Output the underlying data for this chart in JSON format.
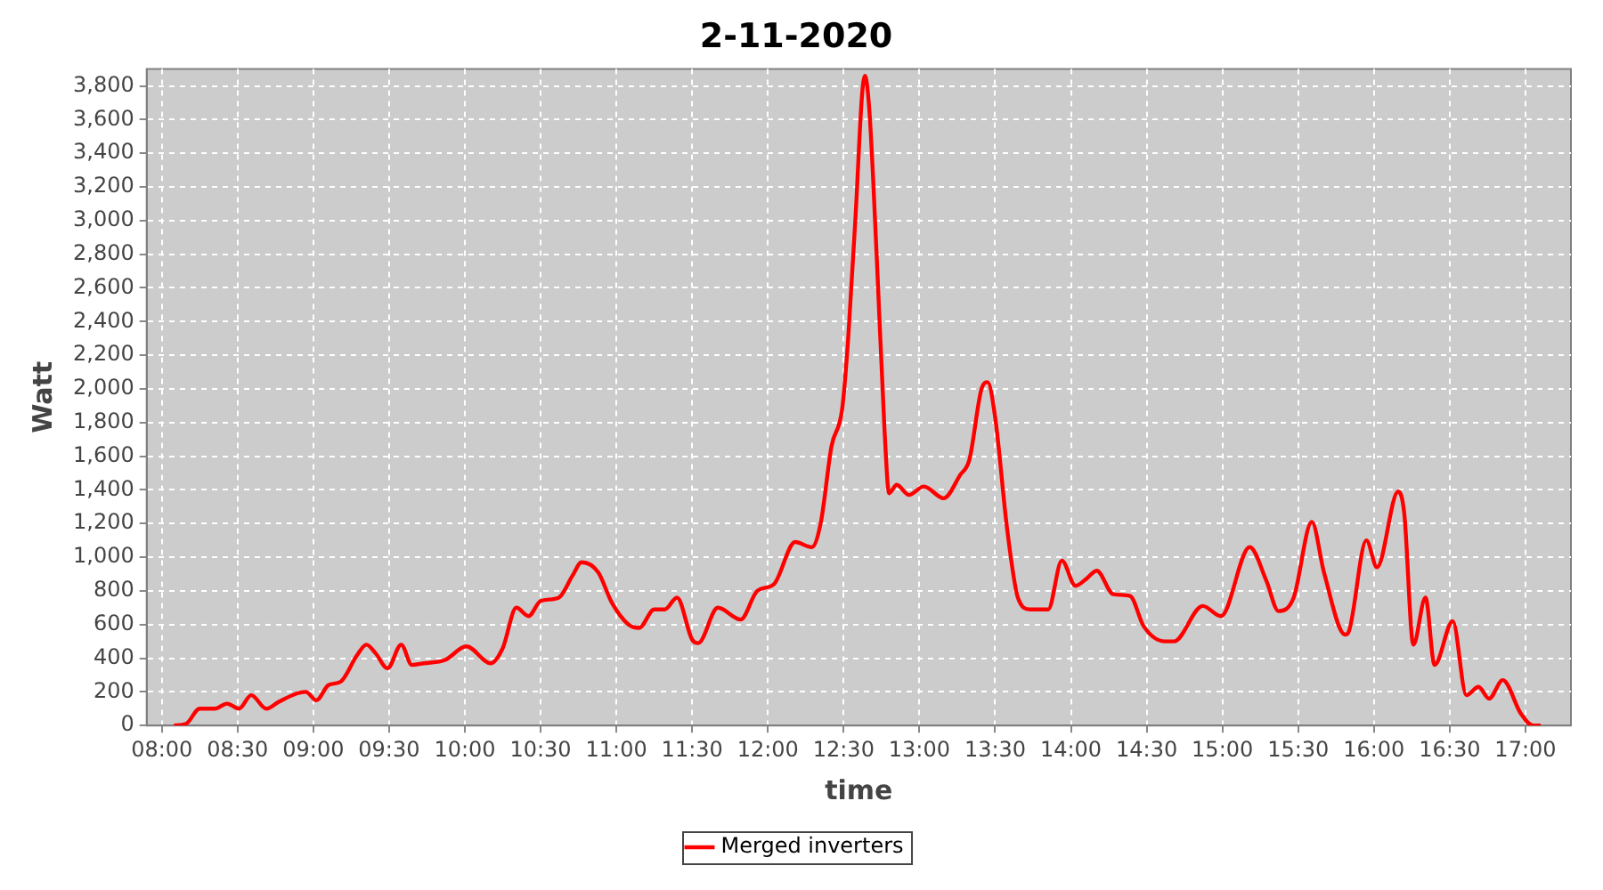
{
  "chart_data": {
    "type": "line",
    "title": "2-11-2020",
    "xlabel": "time",
    "ylabel": "Watt",
    "x": [
      8.08,
      8.16,
      8.25,
      8.35,
      8.43,
      8.51,
      8.59,
      8.69,
      8.77,
      8.89,
      8.95,
      9.02,
      9.1,
      9.18,
      9.29,
      9.35,
      9.41,
      9.49,
      9.58,
      9.65,
      9.73,
      9.87,
      10.01,
      10.17,
      10.25,
      10.34,
      10.42,
      10.5,
      10.62,
      10.71,
      10.77,
      10.88,
      10.97,
      11.08,
      11.15,
      11.25,
      11.32,
      11.4,
      11.5,
      11.54,
      11.67,
      11.82,
      11.93,
      12.04,
      12.18,
      12.29,
      12.35,
      12.42,
      12.49,
      12.53,
      12.58,
      12.62,
      12.64,
      12.67,
      12.72,
      12.77,
      12.8,
      12.85,
      12.93,
      13.03,
      13.16,
      13.27,
      13.33,
      13.41,
      13.45,
      13.5,
      13.58,
      13.65,
      13.73,
      13.85,
      13.94,
      14.03,
      14.1,
      14.17,
      14.28,
      14.39,
      14.48,
      14.62,
      14.68,
      14.87,
      14.99,
      15.18,
      15.29,
      15.37,
      15.47,
      15.59,
      15.67,
      15.81,
      15.83,
      15.95,
      16.02,
      16.16,
      16.2,
      16.26,
      16.34,
      16.4,
      16.52,
      16.61,
      16.69,
      16.76,
      16.85,
      16.97,
      17.05,
      17.1
    ],
    "series": [
      {
        "name": "Merged inverters",
        "color": "#ff0000",
        "values": [
          0,
          10,
          100,
          100,
          130,
          100,
          180,
          100,
          140,
          190,
          200,
          150,
          240,
          260,
          420,
          480,
          430,
          340,
          480,
          360,
          370,
          390,
          470,
          370,
          460,
          700,
          650,
          740,
          760,
          890,
          970,
          910,
          730,
          600,
          580,
          690,
          690,
          760,
          510,
          490,
          700,
          630,
          800,
          840,
          1090,
          1060,
          1210,
          1660,
          1880,
          2300,
          3050,
          3730,
          3860,
          3650,
          2750,
          1750,
          1380,
          1430,
          1370,
          1420,
          1350,
          1490,
          1580,
          2000,
          2040,
          1830,
          1160,
          760,
          690,
          690,
          980,
          830,
          870,
          920,
          780,
          770,
          590,
          500,
          500,
          710,
          650,
          1060,
          860,
          680,
          760,
          1210,
          910,
          540,
          550,
          1100,
          940,
          1390,
          1260,
          480,
          760,
          360,
          620,
          180,
          230,
          160,
          270,
          70,
          0,
          0
        ]
      }
    ],
    "xlim": [
      7.9,
      17.3
    ],
    "xticks": [
      {
        "value": 8,
        "label": "08:00"
      },
      {
        "value": 8.5,
        "label": "08:30"
      },
      {
        "value": 9,
        "label": "09:00"
      },
      {
        "value": 9.5,
        "label": "09:30"
      },
      {
        "value": 10,
        "label": "10:00"
      },
      {
        "value": 10.5,
        "label": "10:30"
      },
      {
        "value": 11,
        "label": "11:00"
      },
      {
        "value": 11.5,
        "label": "11:30"
      },
      {
        "value": 12,
        "label": "12:00"
      },
      {
        "value": 12.5,
        "label": "12:30"
      },
      {
        "value": 13,
        "label": "13:00"
      },
      {
        "value": 13.5,
        "label": "13:30"
      },
      {
        "value": 14,
        "label": "14:00"
      },
      {
        "value": 14.5,
        "label": "14:30"
      },
      {
        "value": 15,
        "label": "15:00"
      },
      {
        "value": 15.5,
        "label": "15:30"
      },
      {
        "value": 16,
        "label": "16:00"
      },
      {
        "value": 16.5,
        "label": "16:30"
      },
      {
        "value": 17,
        "label": "17:00"
      }
    ],
    "ylim": [
      0,
      3900
    ],
    "yticks": [
      0,
      200,
      400,
      600,
      800,
      {
        "value": 1000,
        "label": "1,000"
      },
      {
        "value": 1200,
        "label": "1,200"
      },
      {
        "value": 1400,
        "label": "1,400"
      },
      {
        "value": 1600,
        "label": "1,600"
      },
      {
        "value": 1800,
        "label": "1,800"
      },
      {
        "value": 2000,
        "label": "2,000"
      },
      {
        "value": 2200,
        "label": "2,200"
      },
      {
        "value": 2400,
        "label": "2,400"
      },
      {
        "value": 2600,
        "label": "2,600"
      },
      {
        "value": 2800,
        "label": "2,800"
      },
      {
        "value": 3000,
        "label": "3,000"
      },
      {
        "value": 3200,
        "label": "3,200"
      },
      {
        "value": 3400,
        "label": "3,400"
      },
      {
        "value": 3600,
        "label": "3,600"
      },
      {
        "value": 3800,
        "label": "3,800"
      }
    ],
    "grid": true,
    "legend": "bottom",
    "marker": "none",
    "line_style": "solid"
  }
}
